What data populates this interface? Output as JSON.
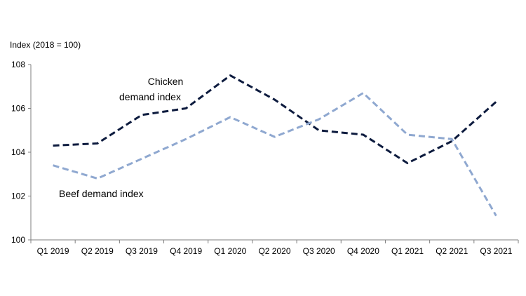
{
  "chart_data": {
    "type": "line",
    "ylabel": "Index (2018 = 100)",
    "xlabel": "",
    "categories": [
      "Q1 2019",
      "Q2 2019",
      "Q3 2019",
      "Q4 2019",
      "Q1 2020",
      "Q2 2020",
      "Q3 2020",
      "Q4 2020",
      "Q1 2021",
      "Q2 2021",
      "Q3 2021"
    ],
    "ylim": [
      100,
      108
    ],
    "yticks": [
      "100",
      "102",
      "104",
      "106",
      "108"
    ],
    "grid": false,
    "legend": "none",
    "series": [
      {
        "name": "Chicken demand index",
        "label_lines": [
          "Chicken",
          "demand index"
        ],
        "color": "#0d1b3e",
        "style": "dashed",
        "values": [
          104.3,
          104.4,
          105.7,
          106.0,
          107.5,
          106.4,
          105.0,
          104.8,
          103.5,
          104.5,
          106.3
        ]
      },
      {
        "name": "Beef demand index",
        "label_lines": [
          "Beef demand index"
        ],
        "color": "#8fa8d0",
        "style": "dashed",
        "values": [
          103.4,
          102.8,
          103.7,
          104.6,
          105.6,
          104.7,
          105.5,
          106.7,
          104.8,
          104.6,
          101.1
        ]
      }
    ]
  }
}
